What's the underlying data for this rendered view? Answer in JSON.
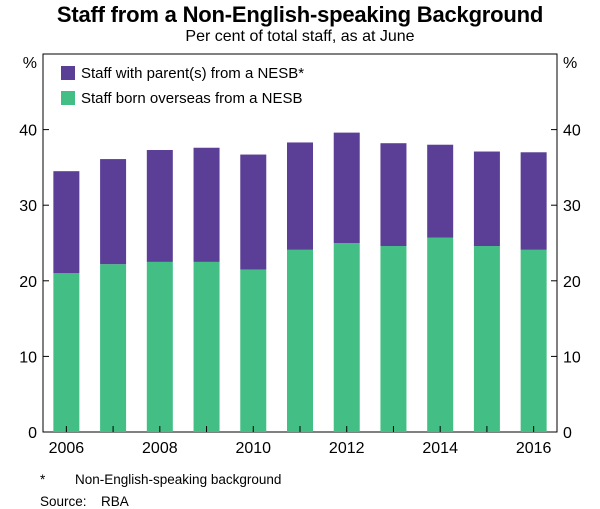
{
  "title": "Staff from a Non-English-speaking Background",
  "subtitle": "Per cent of total staff, as at June",
  "footnote": {
    "marker": "*",
    "text": "Non-English-speaking background"
  },
  "source": {
    "label": "Source:",
    "value": "RBA"
  },
  "chart_data": {
    "type": "bar",
    "stacked": true,
    "x": [
      2006,
      2007,
      2008,
      2009,
      2010,
      2011,
      2012,
      2013,
      2014,
      2015,
      2016
    ],
    "x_tick_labels": [
      "2006",
      "2008",
      "2010",
      "2012",
      "2014",
      "2016"
    ],
    "y_unit_left": "%",
    "y_unit_right": "%",
    "ylim": [
      0,
      50
    ],
    "y_ticks": [
      0,
      10,
      20,
      30,
      40
    ],
    "grid": false,
    "legend_position": "top-left",
    "series": [
      {
        "name": "Staff born overseas from a NESB",
        "color": "#43bf85",
        "values": [
          21.0,
          22.2,
          22.5,
          22.5,
          21.5,
          24.1,
          25.0,
          24.6,
          25.7,
          24.6,
          24.1
        ]
      },
      {
        "name": "Staff with parent(s) from a NESB*",
        "color": "#5b3f96",
        "values": [
          13.5,
          13.9,
          14.8,
          15.1,
          15.2,
          14.2,
          14.6,
          13.6,
          12.3,
          12.5,
          12.9
        ]
      }
    ]
  }
}
